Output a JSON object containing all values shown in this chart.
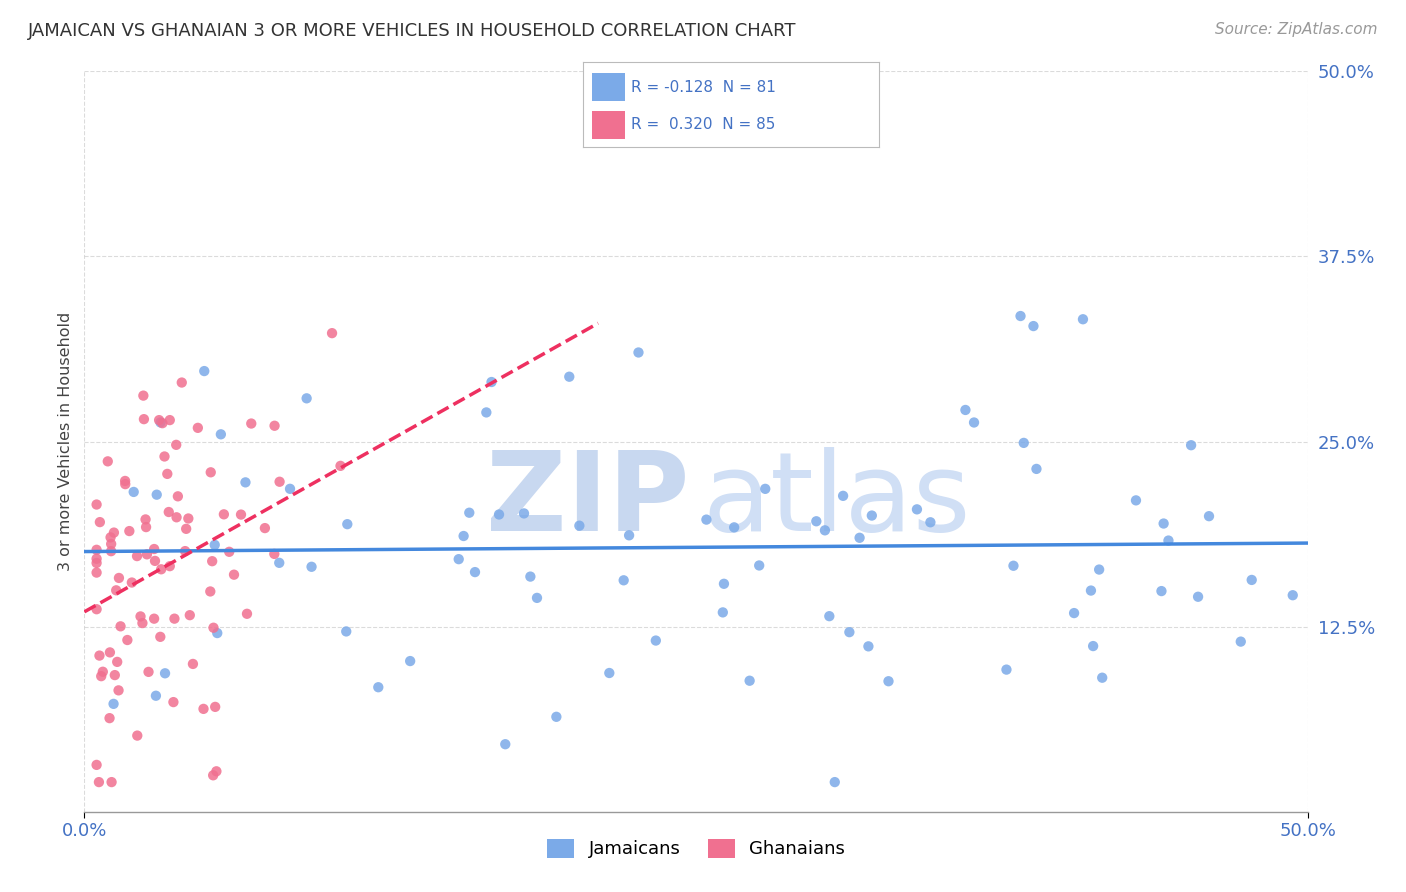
{
  "title": "JAMAICAN VS GHANAIAN 3 OR MORE VEHICLES IN HOUSEHOLD CORRELATION CHART",
  "source_text": "Source: ZipAtlas.com",
  "ylabel": "3 or more Vehicles in Household",
  "ytick_labels": [
    "12.5%",
    "25.0%",
    "37.5%",
    "50.0%"
  ],
  "ytick_values": [
    0.125,
    0.25,
    0.375,
    0.5
  ],
  "xlim": [
    0.0,
    0.5
  ],
  "ylim": [
    0.0,
    0.5
  ],
  "r_jamaican": "-0.128",
  "n_jamaican": "81",
  "r_ghanaian": "0.320",
  "n_ghanaian": "85",
  "jamaican_color": "#7baae8",
  "ghanaian_color": "#f07090",
  "trend_jamaican_color": "#4488dd",
  "trend_ghanaian_color": "#ee3060",
  "watermark_zip_color": "#c8d8f0",
  "watermark_atlas_color": "#d0dff5",
  "background_color": "#ffffff",
  "title_color": "#333333",
  "source_color": "#999999",
  "axis_tick_color": "#4472c4",
  "legend_label_color": "#4472c4",
  "grid_color": "#cccccc",
  "spine_color": "#999999"
}
